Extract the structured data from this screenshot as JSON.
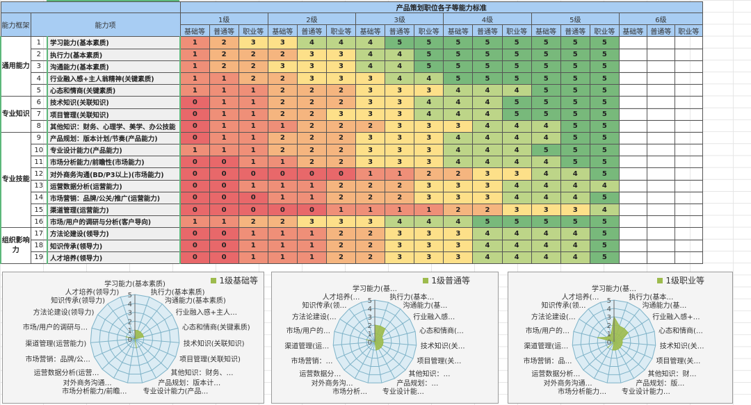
{
  "sheet": {
    "title": "产品策划职位各子等能力标准",
    "col_framework": "能力框架",
    "col_item": "能力项",
    "levels": [
      "1级",
      "2级",
      "3级",
      "4级",
      "5级",
      "6级"
    ],
    "sub_levels": [
      "基础等",
      "普通等",
      "职业等"
    ],
    "groups": [
      {
        "name": "通用能力",
        "rows": 5
      },
      {
        "name": "专业知识",
        "rows": 3
      },
      {
        "name": "专业技能",
        "rows": 8
      },
      {
        "name": "组织影响力",
        "rows": 3
      }
    ],
    "rows": [
      {
        "no": "1",
        "name": "学习能力(基本素质)",
        "values": [
          1,
          2,
          3,
          3,
          4,
          4,
          4,
          5,
          5,
          5,
          5,
          5,
          5,
          5,
          5
        ]
      },
      {
        "no": "2",
        "name": "执行力(基本素质)",
        "values": [
          1,
          2,
          2,
          2,
          3,
          3,
          4,
          4,
          5,
          5,
          5,
          5,
          5,
          5,
          5
        ]
      },
      {
        "no": "3",
        "name": "沟通能力(基本素质)",
        "values": [
          1,
          2,
          2,
          3,
          3,
          3,
          4,
          4,
          5,
          5,
          5,
          5,
          5,
          5,
          5
        ]
      },
      {
        "no": "4",
        "name": "行业融入感+主人翁精神(关键素质)",
        "values": [
          1,
          1,
          2,
          2,
          3,
          3,
          3,
          4,
          4,
          5,
          5,
          5,
          5,
          5,
          5
        ]
      },
      {
        "no": "5",
        "name": "心态和情商(关键素质)",
        "values": [
          1,
          1,
          1,
          2,
          2,
          2,
          3,
          3,
          3,
          4,
          4,
          4,
          5,
          5,
          5
        ]
      },
      {
        "no": "6",
        "name": "技术知识(关联知识)",
        "values": [
          0,
          1,
          1,
          2,
          2,
          2,
          3,
          3,
          4,
          4,
          4,
          5,
          5,
          5,
          5
        ]
      },
      {
        "no": "7",
        "name": "项目管理(关联知识)",
        "values": [
          0,
          1,
          1,
          2,
          2,
          3,
          3,
          3,
          4,
          4,
          4,
          5,
          5,
          5,
          5
        ]
      },
      {
        "no": "8",
        "name": "其他知识：财务、心理学、美学、办公技能",
        "values": [
          0,
          1,
          1,
          1,
          2,
          2,
          2,
          3,
          3,
          3,
          4,
          4,
          4,
          5,
          5
        ]
      },
      {
        "no": "9",
        "name": "产品规划：版本计划/节奏(产品能力)",
        "values": [
          0,
          1,
          1,
          2,
          2,
          2,
          3,
          3,
          3,
          4,
          4,
          4,
          4,
          5,
          5
        ]
      },
      {
        "no": "10",
        "name": "专业设计能力(产品能力)",
        "values": [
          1,
          1,
          1,
          2,
          2,
          2,
          3,
          3,
          3,
          4,
          4,
          4,
          5,
          5,
          5
        ]
      },
      {
        "no": "11",
        "name": "市场分析能力/前瞻性(市场能力)",
        "values": [
          0,
          0,
          1,
          1,
          2,
          2,
          3,
          3,
          3,
          4,
          4,
          4,
          4,
          5,
          5
        ]
      },
      {
        "no": "12",
        "name": "对外商务沟通(BD/P3以上)(市场能力)",
        "values": [
          0,
          0,
          0,
          0,
          0,
          0,
          1,
          1,
          2,
          2,
          3,
          3,
          4,
          4,
          5
        ]
      },
      {
        "no": "13",
        "name": "运营数据分析(运营能力)",
        "values": [
          0,
          0,
          1,
          1,
          1,
          2,
          2,
          2,
          3,
          3,
          3,
          4,
          4,
          4,
          4
        ]
      },
      {
        "no": "14",
        "name": "市场营销：品牌/公关/推广(运营能力)",
        "values": [
          0,
          0,
          0,
          1,
          1,
          2,
          2,
          2,
          3,
          3,
          3,
          4,
          4,
          4,
          5
        ]
      },
      {
        "no": "15",
        "name": "渠道管理(运营能力)",
        "values": [
          0,
          0,
          0,
          0,
          0,
          1,
          1,
          1,
          1,
          2,
          2,
          3,
          3,
          3,
          4
        ]
      },
      {
        "no": "16",
        "name": "市场/用户的调研与分析(客户导向)",
        "values": [
          1,
          1,
          2,
          2,
          3,
          3,
          3,
          4,
          4,
          4,
          5,
          5,
          5,
          5,
          5
        ]
      },
      {
        "no": "17",
        "name": "方法论建设(领导力)",
        "values": [
          0,
          0,
          1,
          1,
          1,
          2,
          2,
          3,
          3,
          3,
          4,
          4,
          4,
          4,
          5
        ]
      },
      {
        "no": "18",
        "name": "知识传承(领导力)",
        "values": [
          0,
          0,
          1,
          1,
          1,
          2,
          2,
          3,
          3,
          3,
          4,
          4,
          4,
          4,
          5
        ]
      },
      {
        "no": "19",
        "name": "人才培养(领导力)",
        "values": [
          0,
          0,
          1,
          1,
          1,
          2,
          2,
          3,
          3,
          3,
          4,
          4,
          4,
          4,
          5
        ]
      }
    ],
    "scale_colors": [
      "#e8686a",
      "#ef8f78",
      "#f5b57f",
      "#fde089",
      "#bdd588",
      "#78b97b"
    ]
  },
  "chart_data": [
    {
      "type": "radar",
      "series": [
        {
          "name": "1级基础等",
          "values": [
            1,
            1,
            1,
            1,
            1,
            0,
            0,
            0,
            0,
            1,
            0,
            0,
            0,
            0,
            0,
            1,
            0,
            0,
            0
          ]
        }
      ],
      "ylim": [
        0,
        5
      ],
      "ticks": [
        "0",
        "1",
        "2",
        "3",
        "4",
        "5"
      ],
      "categories": [
        "学习能力(基本素质)",
        "执行力(基本素质)",
        "沟通能力(基本素质)",
        "行业融入感+主人…",
        "心态和情商(关键素质)",
        "技术知识(关联知识)",
        "项目管理(关联知识)",
        "其他知识：财务、…",
        "产品规划：版本计…",
        "专业设计能力(产品…",
        "市场分析能力/前瞻…",
        "对外商务沟通…",
        "运营数据分析(运营…",
        "市场营销：品牌/公…",
        "渠道管理(运营能力)",
        "市场/用户的调研与…",
        "方法论建设(领导力)",
        "知识传承(领导力)",
        "人才培养(领导力)"
      ],
      "legend": "top-right",
      "color": "#9dbb4d"
    },
    {
      "type": "radar",
      "series": [
        {
          "name": "1级普通等",
          "values": [
            2,
            2,
            2,
            1,
            1,
            1,
            1,
            1,
            1,
            1,
            0,
            0,
            0,
            0,
            0,
            1,
            0,
            0,
            0
          ]
        }
      ],
      "ylim": [
        0,
        5
      ],
      "ticks": [
        "0",
        "1",
        "2",
        "3",
        "4",
        "5"
      ],
      "categories": [
        "学习能力(基…",
        "执行力(基本…",
        "沟通能力(基…",
        "行业融入感…",
        "心态和情商(…",
        "技术知识(关…",
        "项目管理(关…",
        "其他知识：…",
        "产品规划：…",
        "专业设计能…",
        "市场分析…",
        "对外商务沟…",
        "运营数据分…",
        "市场营销：…",
        "渠道管理(运…",
        "市场/用户的…",
        "方法论建设(…",
        "知识传承(领…",
        "人才培养(…"
      ],
      "legend": "top-right",
      "color": "#9dbb4d"
    },
    {
      "type": "radar",
      "series": [
        {
          "name": "1级职业等",
          "values": [
            3,
            2,
            2,
            2,
            1,
            1,
            1,
            1,
            1,
            1,
            1,
            0,
            1,
            0,
            0,
            2,
            1,
            1,
            1
          ]
        }
      ],
      "ylim": [
        0,
        5
      ],
      "ticks": [
        "0",
        "1",
        "2",
        "3",
        "4",
        "5"
      ],
      "categories": [
        "学习能力(基…",
        "执行力(基本…",
        "沟通能力(基…",
        "行业融入感+…",
        "心态和情商(…",
        "技术知识(关…",
        "项目管理(关…",
        "其他知识：财…",
        "产品规划：版…",
        "专业设计能力…",
        "市场分析能力…",
        "对外商务沟通…",
        "运营数据分析…",
        "市场营销：品…",
        "渠道管理(运…",
        "市场/用户的…",
        "方法论建设(…",
        "知识传承(领…",
        "人才培养(…"
      ],
      "legend": "top-right",
      "color": "#9dbb4d"
    }
  ]
}
